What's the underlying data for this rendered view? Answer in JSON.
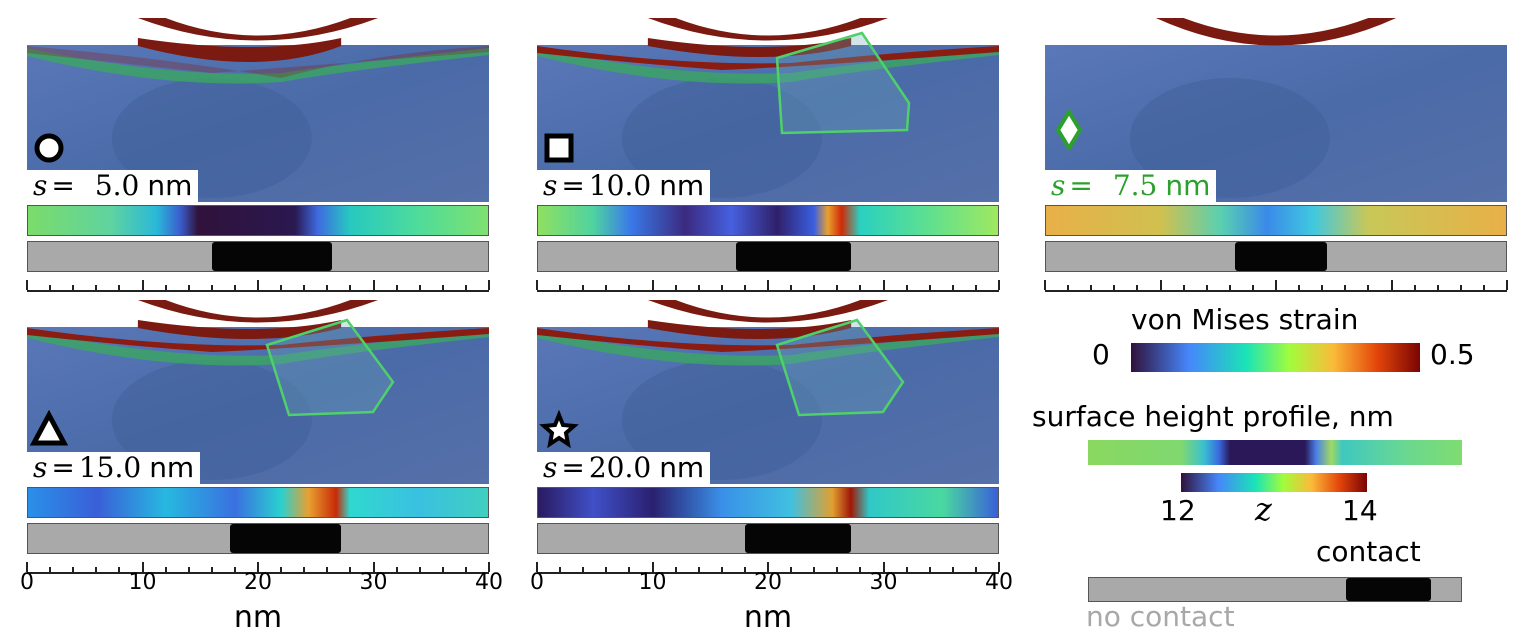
{
  "panels": [
    {
      "marker": "circle-marker",
      "s_var": "s",
      "s_eq": "=",
      "s_value": "5.0",
      "s_unit": "nm",
      "label_color": "#000000",
      "slip_region": false,
      "contact_range": [
        0.4,
        0.66
      ],
      "x_axis_labels": false
    },
    {
      "marker": "square-marker",
      "s_var": "s",
      "s_eq": "=",
      "s_value": "10.0",
      "s_unit": "nm",
      "label_color": "#000000",
      "slip_region": true,
      "contact_range": [
        0.43,
        0.68
      ],
      "x_axis_labels": false
    },
    {
      "marker": "diamond-marker",
      "s_var": "s",
      "s_eq": "=",
      "s_value": "7.5",
      "s_unit": "nm",
      "label_color": "#2ca02c",
      "slip_region": false,
      "contact_range": [
        0.41,
        0.61
      ],
      "x_axis_labels": false
    },
    {
      "marker": "triangle-marker",
      "s_var": "s",
      "s_eq": "=",
      "s_value": "15.0",
      "s_unit": "nm",
      "label_color": "#000000",
      "slip_region": true,
      "contact_range": [
        0.44,
        0.68
      ],
      "x_axis_labels": true
    },
    {
      "marker": "star-marker",
      "s_var": "s",
      "s_eq": "=",
      "s_value": "20.0",
      "s_unit": "nm",
      "label_color": "#000000",
      "slip_region": true,
      "contact_range": [
        0.45,
        0.68
      ],
      "x_axis_labels": true
    }
  ],
  "x_axis": {
    "ticks": [
      "0",
      "10",
      "20",
      "30",
      "40"
    ],
    "range": [
      0,
      40
    ],
    "label": "nm"
  },
  "legend": {
    "strain_title": "von Mises strain",
    "strain_min": "0",
    "strain_max": "0.5",
    "height_title": "surface height profile",
    "height_unit": ", nm",
    "height_min": "12",
    "height_var": "z",
    "height_max": "14",
    "contact_label": "contact",
    "no_contact_label": "no contact",
    "contact_range": [
      0.69,
      0.92
    ]
  },
  "colors": {
    "slip_region": "#4fd16a",
    "indenter": "#7a1a10",
    "substrate": "#4a6fb0",
    "no_contact_text": "#a8a8a8"
  }
}
